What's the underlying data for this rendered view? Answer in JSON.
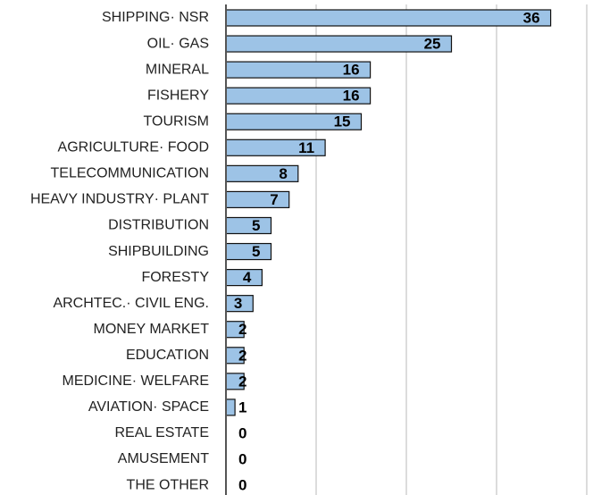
{
  "chart_data": {
    "type": "bar",
    "orientation": "horizontal",
    "categories": [
      "SHIPPING· NSR",
      "OIL· GAS",
      "MINERAL",
      "FISHERY",
      "TOURISM",
      "AGRICULTURE· FOOD",
      "TELECOMMUNICATION",
      "HEAVY INDUSTRY· PLANT",
      "DISTRIBUTION",
      "SHIPBUILDING",
      "FORESTY",
      "ARCHTEC.· CIVIL ENG.",
      "MONEY MARKET",
      "EDUCATION",
      "MEDICINE· WELFARE",
      "AVIATION· SPACE",
      "REAL ESTATE",
      "AMUSEMENT",
      "THE OTHER"
    ],
    "values": [
      36,
      25,
      16,
      16,
      15,
      11,
      8,
      7,
      5,
      5,
      4,
      3,
      2,
      2,
      2,
      1,
      0,
      0,
      0
    ],
    "color": "#9dc3e6",
    "xlim": [
      0,
      40
    ],
    "xticks": [
      10,
      20,
      30,
      40
    ],
    "grid": true
  }
}
